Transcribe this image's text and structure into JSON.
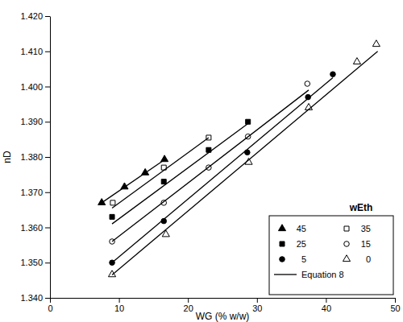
{
  "chart_data": {
    "type": "scatter",
    "x_label": "WG (% w/w)",
    "y_label": "nD",
    "legend_title": "wEth",
    "legend": "lower right",
    "grid": false,
    "xlim": [
      0,
      50
    ],
    "xticks": [
      0,
      10,
      20,
      30,
      40,
      50
    ],
    "ylim": [
      1.34,
      1.42
    ],
    "yticks": [
      {
        "value": 1.34,
        "label": "1.340"
      },
      {
        "value": 1.35,
        "label": "1.350"
      },
      {
        "value": 1.36,
        "label": "1.360"
      },
      {
        "value": 1.37,
        "label": "1.370"
      },
      {
        "value": 1.38,
        "label": "1.380"
      },
      {
        "value": 1.39,
        "label": "1.390"
      },
      {
        "value": 1.4,
        "label": "1.400"
      },
      {
        "value": 1.41,
        "label": "1.410"
      },
      {
        "value": 1.42,
        "label": "1.420"
      }
    ],
    "series": [
      {
        "name": "45",
        "type": "scatter",
        "marker": "triangle",
        "color": "#000000",
        "x": [
          7.5,
          10.8,
          13.8,
          16.6
        ],
        "values": [
          1.367,
          1.3715,
          1.3755,
          1.3793
        ]
      },
      {
        "name": "35",
        "type": "scatter",
        "marker": "square-open",
        "color": "#000000",
        "x": [
          9.1,
          16.5,
          23.0
        ],
        "values": [
          1.367,
          1.377,
          1.3855
        ]
      },
      {
        "name": "25",
        "type": "scatter",
        "marker": "square",
        "color": "#000000",
        "x": [
          9.0,
          16.5,
          23.0,
          28.7
        ],
        "values": [
          1.363,
          1.373,
          1.382,
          1.39
        ]
      },
      {
        "name": "15",
        "type": "scatter",
        "marker": "circle-open",
        "color": "#000000",
        "x": [
          9.0,
          16.5,
          23.0,
          28.7,
          37.3
        ],
        "values": [
          1.356,
          1.367,
          1.377,
          1.3858,
          1.4008
        ]
      },
      {
        "name": "5",
        "type": "scatter",
        "marker": "circle",
        "color": "#000000",
        "x": [
          9.0,
          16.5,
          28.6,
          37.4,
          41.0
        ],
        "values": [
          1.35,
          1.3618,
          1.3813,
          1.397,
          1.4035
        ]
      },
      {
        "name": "0",
        "type": "scatter",
        "marker": "triangle-open",
        "color": "#000000",
        "x": [
          9.0,
          16.8,
          28.8,
          37.5,
          44.5,
          47.3
        ],
        "values": [
          1.3466,
          1.358,
          1.3785,
          1.394,
          1.407,
          1.412
        ]
      },
      {
        "name": "Equation 8",
        "type": "line",
        "line_style": "solid",
        "color": "#000000",
        "x": [
          7.5,
          16.8,
          null,
          9.0,
          23.0,
          null,
          9.0,
          28.7,
          null,
          9.0,
          37.5,
          null,
          9.0,
          41.0,
          null,
          9.0,
          47.5
        ],
        "values": [
          1.367,
          1.3795,
          null,
          1.3655,
          1.3855,
          null,
          1.361,
          1.3895,
          null,
          1.356,
          1.399,
          null,
          1.35,
          1.4025,
          null,
          1.3465,
          1.41
        ]
      }
    ]
  }
}
